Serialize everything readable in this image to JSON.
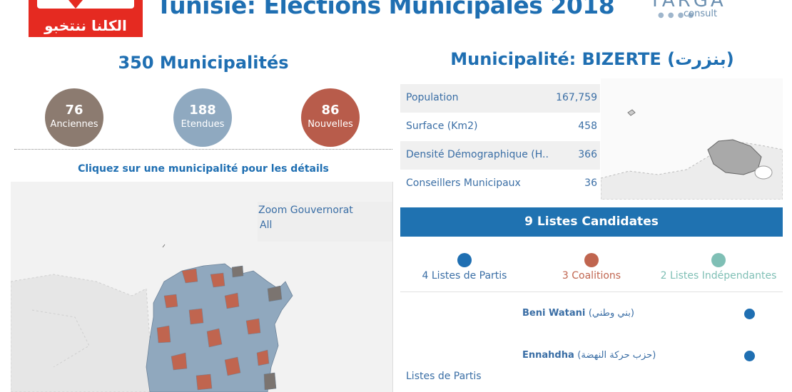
{
  "header": {
    "title": "Tunisie: Elections Municipales 2018",
    "logo_left_text": "الكلنا ننتخبو",
    "logo_right_name": "TARGA",
    "logo_right_sub": "consult"
  },
  "left": {
    "title": "350 Municipalités",
    "stats": [
      {
        "value": "76",
        "label": "Anciennes",
        "color": "#8c7b70"
      },
      {
        "value": "188",
        "label": "Etendues",
        "color": "#8fa9c0"
      },
      {
        "value": "86",
        "label": "Nouvelles",
        "color": "#b85c4b"
      }
    ],
    "hint": "Cliquez sur une municipalité pour les détails",
    "zoom": {
      "label": "Zoom Gouvernorat",
      "value": "All"
    }
  },
  "right": {
    "title": "Municipalité: BIZERTE  (بنزرت)",
    "details": [
      {
        "key": "Population",
        "value": "167,759"
      },
      {
        "key": "Surface (Km2)",
        "value": "458"
      },
      {
        "key": "Densité Démographique (H..",
        "value": "366"
      },
      {
        "key": "Conseillers Municipaux",
        "value": "36"
      }
    ],
    "banner": "9 Listes Candidates",
    "legend": [
      {
        "label": "4 Listes de Partis",
        "color": "#1f6fb2"
      },
      {
        "label": "3 Coalitions",
        "color": "#c0654f"
      },
      {
        "label": "2 Listes Indépendantes",
        "color": "#7fbfb5"
      }
    ],
    "lists_label": "Listes de Partis",
    "parties": [
      {
        "name": "Beni Watani",
        "arabic": "(بني وطني)"
      },
      {
        "name": "Ennahdha",
        "arabic": "(حزب حركة النهضة)"
      }
    ]
  },
  "colors": {
    "accent": "#1f6fb2",
    "anciennes": "#8c7b70",
    "etendues": "#8fa9c0",
    "nouvelles": "#b85c4b"
  }
}
